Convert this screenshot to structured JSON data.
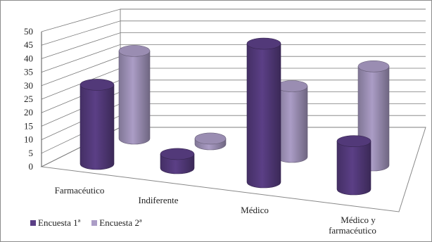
{
  "chart_data": {
    "type": "bar",
    "style": "3d-cylinder",
    "categories": [
      "Farmacéutico",
      "Indiferente",
      "Médico",
      "Médico y farmacéutico"
    ],
    "series": [
      {
        "name": "Encuesta 1ª",
        "color": "#5b3f86",
        "values": [
          28,
          5,
          49,
          17
        ]
      },
      {
        "name": "Encuesta 2ª",
        "color": "#ab9dc6",
        "values": [
          31,
          2,
          25,
          35
        ]
      }
    ],
    "yticks": [
      0,
      5,
      10,
      15,
      20,
      25,
      30,
      35,
      40,
      45,
      50
    ],
    "ylim": [
      0,
      50
    ],
    "grid": true,
    "legend_position": "bottom-left"
  }
}
